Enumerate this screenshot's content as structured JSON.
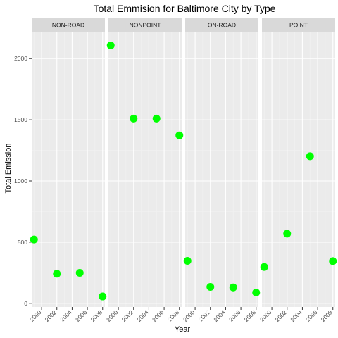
{
  "chart_data": {
    "type": "scatter",
    "title": "Total Emmision for Baltimore City by Type",
    "xlabel": "Year",
    "ylabel": "Total Emission",
    "xlim": [
      1998.7,
      2008.3
    ],
    "ylim": [
      -30,
      2220
    ],
    "x_ticks": [
      2000,
      2002,
      2004,
      2006,
      2008
    ],
    "x_tick_labels": [
      "2000",
      "2002",
      "2004",
      "2006",
      "2008"
    ],
    "y_ticks": [
      0,
      500,
      1000,
      1500,
      2000
    ],
    "y_tick_labels": [
      "0",
      "500",
      "1000",
      "1500",
      "2000"
    ],
    "panel_bg": "#ebebeb",
    "strip_bg": "#d9d9d9",
    "point_color": "#00ff00",
    "grid": true,
    "facets": [
      {
        "label": "NON-ROAD",
        "x": [
          1999,
          2002,
          2005,
          2008
        ],
        "y": [
          522,
          242,
          249,
          56
        ]
      },
      {
        "label": "NONPOINT",
        "x": [
          1999,
          2002,
          2005,
          2008
        ],
        "y": [
          2108,
          1510,
          1510,
          1373
        ]
      },
      {
        "label": "ON-ROAD",
        "x": [
          1999,
          2002,
          2005,
          2008
        ],
        "y": [
          347,
          134,
          130,
          88
        ]
      },
      {
        "label": "POINT",
        "x": [
          1999,
          2002,
          2005,
          2008
        ],
        "y": [
          297,
          569,
          1202,
          345
        ]
      }
    ]
  }
}
